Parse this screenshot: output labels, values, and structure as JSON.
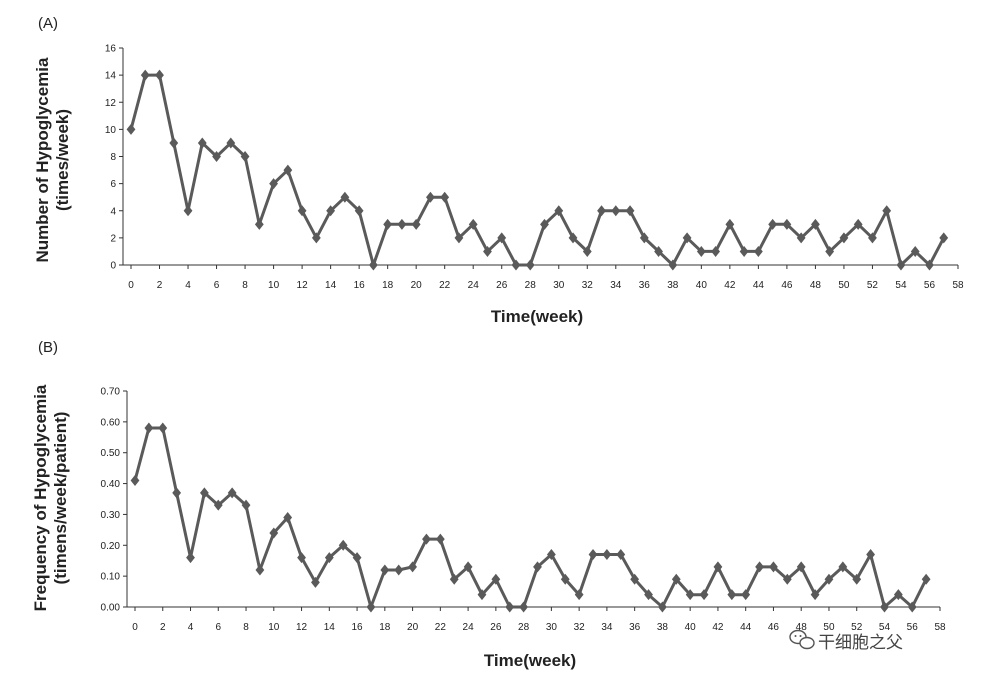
{
  "chart_data": [
    {
      "panel": "(A)",
      "type": "line",
      "xlabel": "Time(week)",
      "ylabel": [
        "Number of Hypoglycemia",
        "(times/week)"
      ],
      "ylim": [
        0,
        16
      ],
      "yticks": [
        "0",
        "2",
        "4",
        "6",
        "8",
        "10",
        "12",
        "14",
        "16"
      ],
      "xlim": [
        0,
        58
      ],
      "xticks": [
        "0",
        "2",
        "4",
        "6",
        "8",
        "10",
        "12",
        "14",
        "16",
        "18",
        "20",
        "22",
        "24",
        "26",
        "28",
        "30",
        "32",
        "34",
        "36",
        "38",
        "40",
        "42",
        "44",
        "46",
        "48",
        "50",
        "52",
        "54",
        "56",
        "58"
      ],
      "marker": "diamond",
      "series": [
        {
          "x": [
            0,
            1,
            2,
            3,
            4,
            5,
            6,
            7,
            8,
            9,
            10,
            11,
            12,
            13,
            14,
            15,
            16,
            17,
            18,
            19,
            20,
            21,
            22,
            23,
            24,
            25,
            26,
            27,
            28,
            29,
            30,
            31,
            32,
            33,
            34,
            35,
            36,
            37,
            38,
            39,
            40,
            41,
            42,
            43,
            44,
            45,
            46,
            47,
            48,
            49,
            50,
            51,
            52,
            53,
            54,
            55,
            56,
            57
          ],
          "values": [
            10,
            14,
            14,
            9,
            4,
            9,
            8,
            9,
            8,
            3,
            6,
            7,
            4,
            2,
            4,
            5,
            4,
            0,
            3,
            3,
            3,
            5,
            5,
            2,
            3,
            1,
            2,
            0,
            0,
            3,
            4,
            2,
            1,
            4,
            4,
            4,
            2,
            1,
            0,
            2,
            1,
            1,
            3,
            1,
            1,
            3,
            3,
            2,
            3,
            1,
            2,
            3,
            2,
            4,
            0,
            1,
            0,
            2
          ]
        }
      ]
    },
    {
      "panel": "(B)",
      "type": "line",
      "xlabel": "Time(week)",
      "ylabel": [
        "Frequency of Hypoglycemia",
        "(timens/week/patient)"
      ],
      "ylim": [
        0,
        0.7
      ],
      "yticks": [
        "0.00",
        "0.10",
        "0.20",
        "0.30",
        "0.40",
        "0.50",
        "0.60",
        "0.70"
      ],
      "xlim": [
        0,
        58
      ],
      "xticks": [
        "0",
        "2",
        "4",
        "6",
        "8",
        "10",
        "12",
        "14",
        "16",
        "18",
        "20",
        "22",
        "24",
        "26",
        "28",
        "30",
        "32",
        "34",
        "36",
        "38",
        "40",
        "42",
        "44",
        "46",
        "48",
        "50",
        "52",
        "54",
        "56",
        "58"
      ],
      "marker": "diamond",
      "series": [
        {
          "x": [
            0,
            1,
            2,
            3,
            4,
            5,
            6,
            7,
            8,
            9,
            10,
            11,
            12,
            13,
            14,
            15,
            16,
            17,
            18,
            19,
            20,
            21,
            22,
            23,
            24,
            25,
            26,
            27,
            28,
            29,
            30,
            31,
            32,
            33,
            34,
            35,
            36,
            37,
            38,
            39,
            40,
            41,
            42,
            43,
            44,
            45,
            46,
            47,
            48,
            49,
            50,
            51,
            52,
            53,
            54,
            55,
            56,
            57
          ],
          "values": [
            0.41,
            0.58,
            0.58,
            0.37,
            0.16,
            0.37,
            0.33,
            0.37,
            0.33,
            0.12,
            0.24,
            0.29,
            0.16,
            0.08,
            0.16,
            0.2,
            0.16,
            0,
            0.12,
            0.12,
            0.13,
            0.22,
            0.22,
            0.09,
            0.13,
            0.04,
            0.09,
            0,
            0,
            0.13,
            0.17,
            0.09,
            0.04,
            0.17,
            0.17,
            0.17,
            0.09,
            0.04,
            0,
            0.09,
            0.04,
            0.04,
            0.13,
            0.04,
            0.04,
            0.13,
            0.13,
            0.09,
            0.13,
            0.04,
            0.09,
            0.13,
            0.09,
            0.17,
            0,
            0.04,
            0,
            0.09
          ]
        }
      ]
    }
  ],
  "watermark": "干细胞之父",
  "colors": {
    "line": "#5a5a5a",
    "axis": "#333333"
  }
}
